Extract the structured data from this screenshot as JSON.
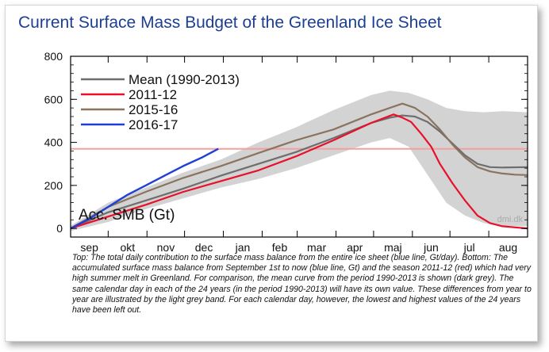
{
  "title": "Current Surface Mass Budget of the Greenland Ice Sheet",
  "caption": "Top: The total daily contribution to the surface mass balance from the entire ice sheet (blue line, Gt/day). Bottom: The accumulated surface mass balance from September 1st to now (blue line, Gt) and the season 2011-12 (red) which had very high summer melt in Greenland. For comparison, the mean curve from the period 1990-2013 is shown (dark grey). The same calendar day in each of the 24 years (in the period 1990-2013) will have its own value. These differences from year to year are illustrated by the light grey band. For each calendar day, however, the lowest and highest values of the 24 years have been left out.",
  "watermark": "dmi.dk",
  "colors": {
    "title": "#1c3f94",
    "mean": "#6e6e6e",
    "s2011": "#e8102a",
    "s2015": "#8a7460",
    "s2016": "#1f3fd6",
    "band": "#d3d3d3",
    "ref": "#f2a0a0"
  },
  "chart_data": {
    "type": "line",
    "ylabel": "Acc. SMB (Gt)",
    "ylim": [
      -40,
      800
    ],
    "yticks": [
      0,
      200,
      400,
      600,
      800
    ],
    "xlim": [
      0,
      365
    ],
    "x_unit": "day of season (0 = September 1st)",
    "month_ticks": [
      {
        "label": "sep",
        "day": 0
      },
      {
        "label": "okt",
        "day": 30
      },
      {
        "label": "nov",
        "day": 61
      },
      {
        "label": "dec",
        "day": 91
      },
      {
        "label": "jan",
        "day": 122
      },
      {
        "label": "feb",
        "day": 153
      },
      {
        "label": "mar",
        "day": 181
      },
      {
        "label": "apr",
        "day": 212
      },
      {
        "label": "maj",
        "day": 242
      },
      {
        "label": "jun",
        "day": 273
      },
      {
        "label": "jul",
        "day": 303
      },
      {
        "label": "aug",
        "day": 334
      }
    ],
    "reference_line": 370,
    "band": {
      "x": [
        0,
        30,
        60,
        90,
        120,
        150,
        180,
        210,
        240,
        255,
        270,
        285,
        300,
        315,
        330,
        345,
        365
      ],
      "upper": [
        12,
        120,
        190,
        260,
        320,
        400,
        470,
        550,
        620,
        640,
        630,
        600,
        560,
        545,
        540,
        545,
        540
      ],
      "lower": [
        -12,
        30,
        90,
        140,
        190,
        230,
        280,
        340,
        400,
        420,
        380,
        250,
        120,
        60,
        25,
        10,
        10
      ]
    },
    "series": [
      {
        "name": "Mean (1990-2013)",
        "color_key": "mean",
        "x": [
          0,
          30,
          60,
          90,
          120,
          150,
          180,
          210,
          240,
          255,
          265,
          275,
          285,
          295,
          305,
          315,
          325,
          335,
          345,
          365
        ],
        "y": [
          0,
          75,
          130,
          185,
          245,
          300,
          355,
          420,
          490,
          515,
          525,
          520,
          495,
          450,
          395,
          340,
          300,
          285,
          283,
          285
        ]
      },
      {
        "name": "2011-12",
        "color_key": "s2011",
        "x": [
          0,
          30,
          60,
          90,
          120,
          150,
          180,
          210,
          240,
          258,
          265,
          272,
          280,
          288,
          295,
          305,
          315,
          325,
          335,
          345,
          355,
          365
        ],
        "y": [
          0,
          55,
          110,
          170,
          220,
          270,
          335,
          410,
          490,
          530,
          515,
          495,
          440,
          380,
          300,
          210,
          130,
          60,
          25,
          10,
          5,
          0
        ]
      },
      {
        "name": "2015-16",
        "color_key": "s2015",
        "x": [
          0,
          30,
          60,
          90,
          120,
          150,
          180,
          210,
          240,
          255,
          265,
          275,
          285,
          295,
          305,
          315,
          325,
          335,
          345,
          355,
          365
        ],
        "y": [
          0,
          100,
          170,
          235,
          290,
          350,
          410,
          460,
          530,
          560,
          580,
          560,
          520,
          460,
          390,
          330,
          285,
          265,
          255,
          250,
          248
        ]
      },
      {
        "name": "2016-17",
        "color_key": "s2016",
        "x": [
          0,
          15,
          30,
          45,
          60,
          75,
          90,
          105,
          118
        ],
        "y": [
          0,
          45,
          100,
          155,
          200,
          245,
          290,
          330,
          370
        ]
      }
    ]
  }
}
